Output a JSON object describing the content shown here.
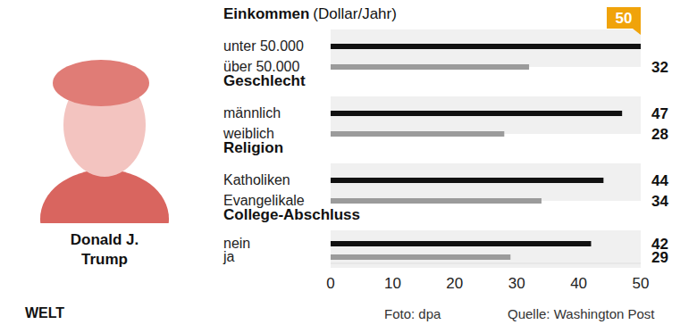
{
  "chart_data": [
    {
      "type": "bar",
      "orientation": "horizontal",
      "title": "Einkommen",
      "subtitle": "(Dollar/Jahr)",
      "categories": [
        "unter 50.000",
        "über 50.000"
      ],
      "values": [
        50,
        32
      ],
      "colors": [
        "#111111",
        "#9b9b9b"
      ],
      "xlim": [
        0,
        50
      ],
      "data_labels": true,
      "tick_labels": "y"
    },
    {
      "type": "bar",
      "orientation": "horizontal",
      "title": "Geschlecht",
      "categories": [
        "männlich",
        "weiblich"
      ],
      "values": [
        47,
        28
      ],
      "colors": [
        "#111111",
        "#9b9b9b"
      ],
      "xlim": [
        0,
        50
      ],
      "data_labels": true,
      "tick_labels": "y"
    },
    {
      "type": "bar",
      "orientation": "horizontal",
      "title": "Religion",
      "categories": [
        "Katholiken",
        "Evangelikale"
      ],
      "values": [
        44,
        34
      ],
      "colors": [
        "#111111",
        "#9b9b9b"
      ],
      "xlim": [
        0,
        50
      ],
      "data_labels": true,
      "tick_labels": "y"
    },
    {
      "type": "bar",
      "orientation": "horizontal",
      "title": "College-Abschluss",
      "categories": [
        "nein",
        "ja"
      ],
      "values": [
        42,
        29
      ],
      "colors": [
        "#111111",
        "#9b9b9b"
      ],
      "xlim": [
        0,
        50
      ],
      "xticks": [
        0,
        10,
        20,
        30,
        40,
        50
      ],
      "data_labels": true,
      "tick_labels": true
    }
  ],
  "person": "Donald J. Trump",
  "brand": "WELT",
  "photo_credit": "Foto: dpa",
  "source": "Quelle: Washington Post"
}
